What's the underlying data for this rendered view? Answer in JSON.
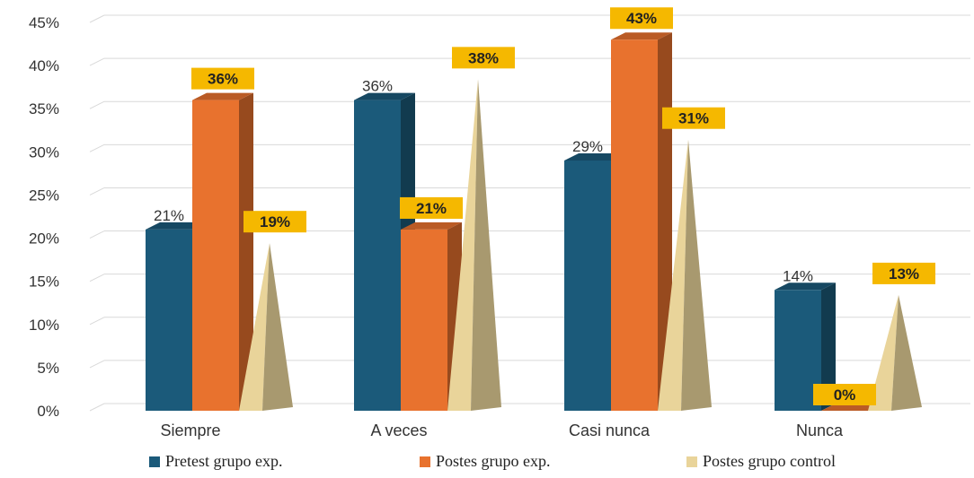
{
  "chart_data": {
    "type": "bar",
    "title": "",
    "xlabel": "",
    "ylabel": "",
    "categories": [
      "Siempre",
      "A veces",
      "Casi nunca",
      "Nunca"
    ],
    "y_ticks": [
      "0%",
      "5%",
      "10%",
      "15%",
      "20%",
      "25%",
      "30%",
      "35%",
      "40%",
      "45%"
    ],
    "ylim": [
      0,
      45
    ],
    "grid": true,
    "legend_position": "bottom",
    "series": [
      {
        "name": "Pretest grupo exp.",
        "values": [
          21,
          36,
          29,
          14
        ],
        "labels": [
          "21%",
          "36%",
          "29%",
          "14%"
        ],
        "color": "#1b5a7a",
        "shape": "column"
      },
      {
        "name": "Postes grupo exp.",
        "values": [
          36,
          21,
          43,
          0
        ],
        "labels": [
          "36%",
          "21%",
          "43%",
          "0%"
        ],
        "color": "#e8722e",
        "shape": "column"
      },
      {
        "name": "Postes grupo control",
        "values": [
          19,
          38,
          31,
          13
        ],
        "labels": [
          "19%",
          "38%",
          "31%",
          "13%"
        ],
        "color": "#e9d49a",
        "shape": "cone"
      }
    ],
    "label_box_color": "#f5b800"
  }
}
